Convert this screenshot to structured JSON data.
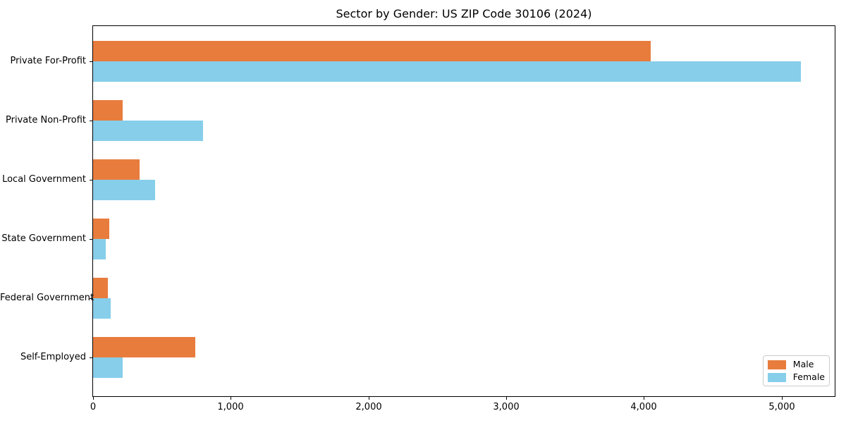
{
  "chart_data": {
    "type": "bar",
    "orientation": "horizontal",
    "title": "Sector by Gender: US ZIP Code 30106 (2024)",
    "categories": [
      "Private For-Profit",
      "Private Non-Profit",
      "Local Government",
      "State Government",
      "Federal Government",
      "Self-Employed"
    ],
    "series": [
      {
        "name": "Male",
        "color": "#e87c3d",
        "values": [
          4050,
          215,
          340,
          120,
          110,
          740
        ]
      },
      {
        "name": "Female",
        "color": "#87ceeb",
        "values": [
          5140,
          800,
          450,
          90,
          130,
          215
        ]
      }
    ],
    "xlabel": "",
    "ylabel": "",
    "xlim": [
      0,
      5385
    ],
    "xticks": [
      0,
      1000,
      2000,
      3000,
      4000,
      5000
    ],
    "xtick_labels": [
      "0",
      "1,000",
      "2,000",
      "3,000",
      "4,000",
      "5,000"
    ],
    "grid": false,
    "legend": {
      "position": "lower right"
    }
  },
  "colors": {
    "male": "#e87c3d",
    "female": "#87ceeb",
    "spine": "#000000",
    "legend_border": "#cccccc",
    "background": "#ffffff"
  }
}
